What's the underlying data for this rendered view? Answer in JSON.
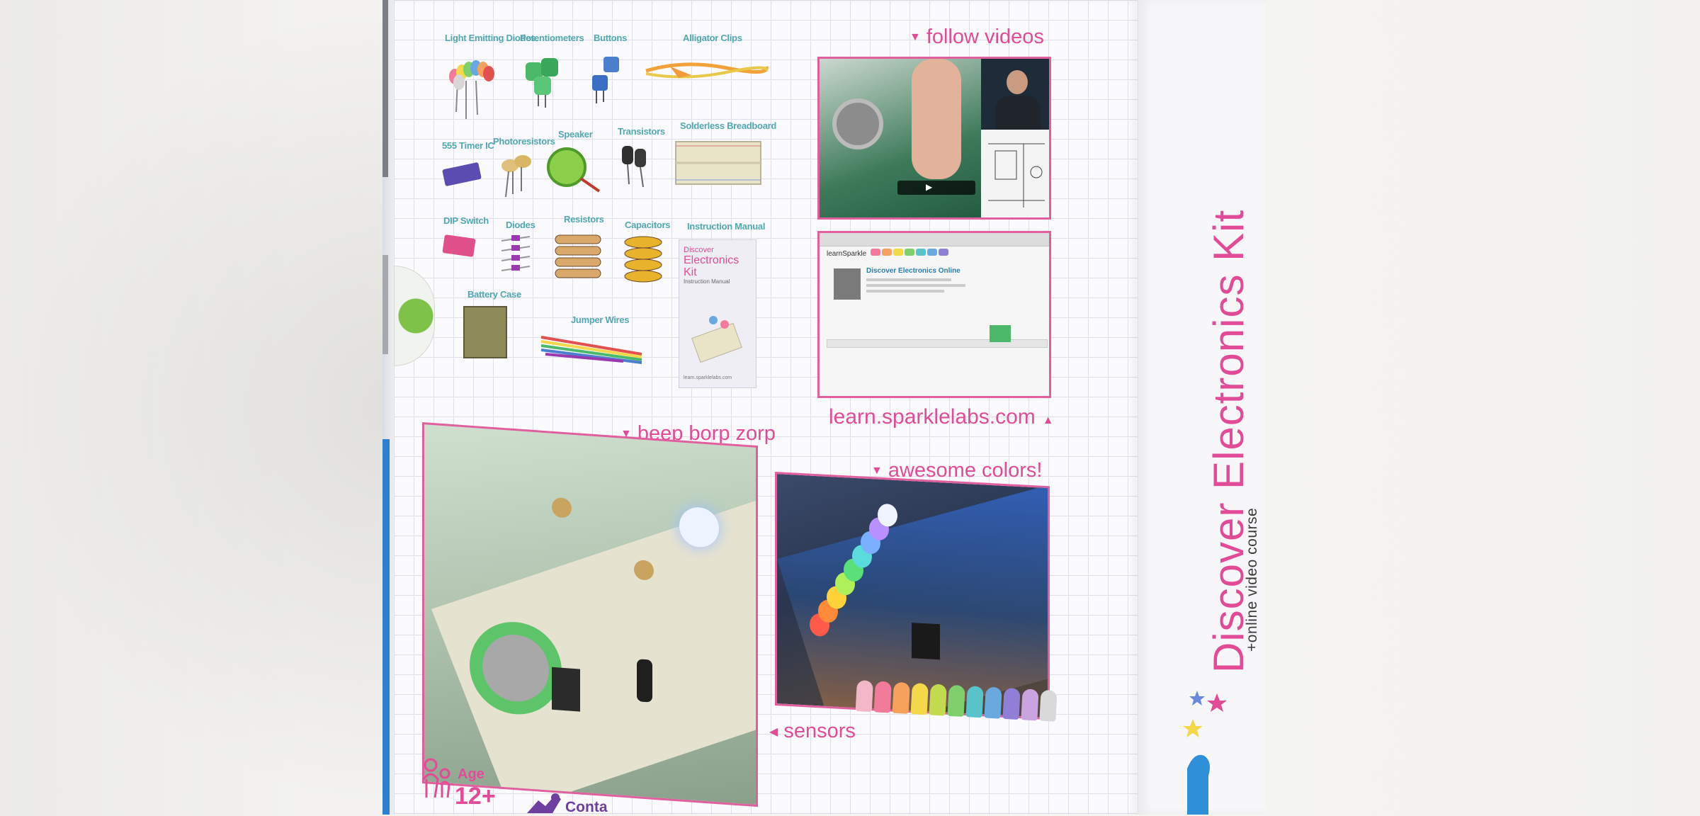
{
  "box": {
    "title": "Discover Electronics Kit",
    "subtitle": "+online video course"
  },
  "parts": [
    {
      "label": "Light Emitting Diodes"
    },
    {
      "label": "Potentiometers"
    },
    {
      "label": "Buttons"
    },
    {
      "label": "Alligator Clips"
    },
    {
      "label": "555 Timer IC"
    },
    {
      "label": "Photoresistors"
    },
    {
      "label": "Speaker"
    },
    {
      "label": "Transistors"
    },
    {
      "label": "Solderless Breadboard"
    },
    {
      "label": "DIP Switch"
    },
    {
      "label": "Diodes"
    },
    {
      "label": "Resistors"
    },
    {
      "label": "Capacitors"
    },
    {
      "label": "Instruction Manual"
    },
    {
      "label": "Battery Case"
    },
    {
      "label": "Jumper Wires"
    }
  ],
  "manual": {
    "line1": "Discover",
    "line2": "Electronics Kit",
    "line3": "Instruction Manual",
    "footer": "learn.sparklelabs.com"
  },
  "captions": {
    "follow_videos": "follow videos",
    "url": "learn.sparklelabs.com",
    "beep": "beep borp zorp",
    "colors": "awesome colors!",
    "sensors": "sensors"
  },
  "website": {
    "logo": "learnSparkle",
    "course_title": "Discover Electronics Online"
  },
  "age": {
    "label": "Age",
    "value": "12+"
  },
  "contains": "Conta",
  "colors": {
    "pink": "#e24b97",
    "teal": "#52a8b0",
    "grid": "#dfe0e8",
    "led_colors": [
      "#f2b8c8",
      "#f27a9a",
      "#f7a25c",
      "#f5d84a",
      "#c3dc4f",
      "#7fcf6d",
      "#58c3c9",
      "#6aa8e0",
      "#8f7fd6",
      "#c9a4de",
      "#d9d9d9"
    ]
  }
}
